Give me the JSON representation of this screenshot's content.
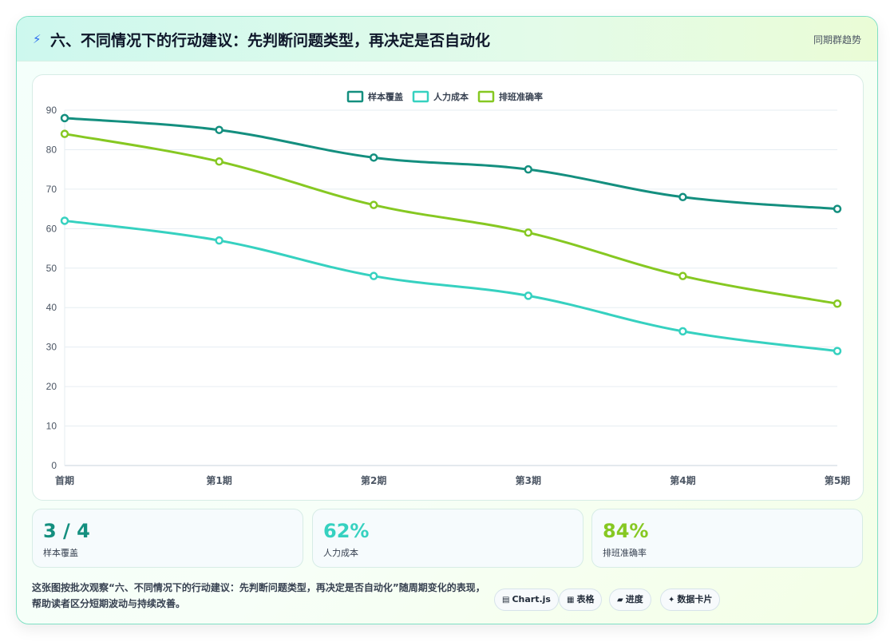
{
  "header": {
    "icon": "lightning-icon",
    "title": "六、不同情况下的行动建议：先判断问题类型，再决定是否自动化",
    "tag": "同期群趋势"
  },
  "chart_data": {
    "type": "line",
    "categories": [
      "首期",
      "第1期",
      "第2期",
      "第3期",
      "第4期",
      "第5期"
    ],
    "series": [
      {
        "name": "样本覆盖",
        "color": "#148f7f",
        "values": [
          88,
          85,
          78,
          75,
          68,
          65
        ]
      },
      {
        "name": "人力成本",
        "color": "#36d1c0",
        "values": [
          62,
          57,
          48,
          43,
          34,
          29
        ]
      },
      {
        "name": "排班准确率",
        "color": "#86c822",
        "values": [
          84,
          77,
          66,
          59,
          48,
          41
        ]
      }
    ],
    "ylim": [
      0,
      90
    ],
    "yticks": [
      0,
      10,
      20,
      30,
      40,
      50,
      60,
      70,
      80,
      90
    ],
    "legend": "top-center",
    "grid": true
  },
  "stats": [
    {
      "value": "3 / 4",
      "label": "样本覆盖",
      "color": "#148f7f"
    },
    {
      "value": "62%",
      "label": "人力成本",
      "color": "#36d1c0"
    },
    {
      "value": "84%",
      "label": "排班准确率",
      "color": "#86c822"
    }
  ],
  "footer": {
    "text": "这张图按批次观察“六、不同情况下的行动建议：先判断问题类型，再决定是否自动化”随周期变化的表现，帮助读者区分短期波动与持续改善。",
    "pills": [
      {
        "icon": "chart-icon",
        "label": "Chart.js"
      },
      {
        "icon": "table-icon",
        "label": "表格"
      },
      {
        "icon": "progress-icon",
        "label": "进度"
      },
      {
        "icon": "sparkle-icon",
        "label": "数据卡片"
      }
    ]
  }
}
